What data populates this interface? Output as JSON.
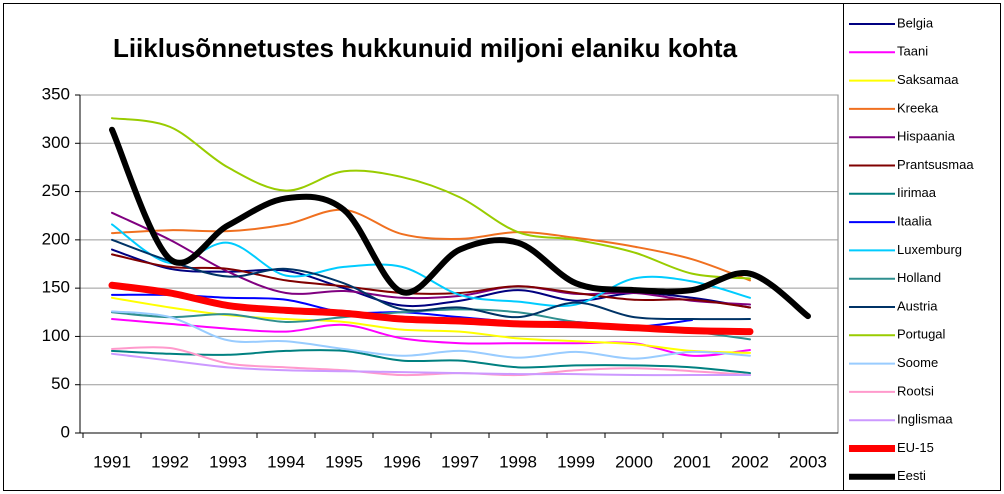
{
  "chart_data": {
    "type": "line",
    "title": "Liiklusõnnetustes hukkunuid miljoni elaniku kohta",
    "categories": [
      "1991",
      "1992",
      "1993",
      "1994",
      "1995",
      "1996",
      "1997",
      "1998",
      "1999",
      "2000",
      "2001",
      "2002",
      "2003"
    ],
    "ylim": [
      0,
      350
    ],
    "yticks": [
      0,
      50,
      100,
      150,
      200,
      250,
      300,
      350
    ],
    "grid": true,
    "series": [
      {
        "name": "Belgia",
        "color": "#000080",
        "width": 2,
        "values": [
          190,
          170,
          167,
          168,
          150,
          132,
          137,
          148,
          137,
          145,
          140,
          130,
          null
        ]
      },
      {
        "name": "Taani",
        "color": "#ff00ff",
        "width": 2,
        "values": [
          118,
          113,
          108,
          105,
          112,
          98,
          93,
          93,
          93,
          93,
          80,
          86,
          null
        ]
      },
      {
        "name": "Saksamaa",
        "color": "#ffff00",
        "width": 2,
        "values": [
          140,
          130,
          122,
          118,
          115,
          107,
          105,
          98,
          95,
          92,
          85,
          83,
          null
        ]
      },
      {
        "name": "Kreeka",
        "color": "#f07020",
        "width": 2,
        "values": [
          207,
          210,
          209,
          216,
          231,
          206,
          201,
          208,
          202,
          193,
          180,
          158,
          null
        ]
      },
      {
        "name": "Hispaania",
        "color": "#800080",
        "width": 2,
        "values": [
          228,
          200,
          167,
          145,
          147,
          140,
          142,
          152,
          144,
          145,
          137,
          133,
          null
        ]
      },
      {
        "name": "Prantsusmaa",
        "color": "#800000",
        "width": 2,
        "values": [
          185,
          172,
          170,
          158,
          152,
          145,
          145,
          152,
          145,
          138,
          138,
          130,
          null
        ]
      },
      {
        "name": "Iirimaa",
        "color": "#008080",
        "width": 2,
        "values": [
          85,
          82,
          81,
          85,
          85,
          75,
          75,
          68,
          70,
          70,
          68,
          62,
          null
        ]
      },
      {
        "name": "Itaalia",
        "color": "#0000ff",
        "width": 2,
        "values": [
          143,
          143,
          140,
          138,
          125,
          125,
          120,
          115,
          115,
          110,
          117,
          null,
          null
        ]
      },
      {
        "name": "Luxemburg",
        "color": "#00ccff",
        "width": 2,
        "values": [
          216,
          176,
          197,
          163,
          172,
          172,
          143,
          136,
          133,
          160,
          157,
          140,
          null
        ]
      },
      {
        "name": "Holland",
        "color": "#2f8f8f",
        "width": 2,
        "values": [
          125,
          120,
          123,
          115,
          120,
          125,
          128,
          125,
          115,
          110,
          105,
          97,
          null
        ]
      },
      {
        "name": "Austria",
        "color": "#003366",
        "width": 2,
        "values": [
          200,
          178,
          162,
          170,
          155,
          128,
          130,
          120,
          135,
          120,
          118,
          118,
          null
        ]
      },
      {
        "name": "Portugal",
        "color": "#99cc00",
        "width": 2,
        "values": [
          326,
          317,
          275,
          251,
          271,
          265,
          244,
          208,
          200,
          187,
          165,
          160,
          null
        ]
      },
      {
        "name": "Soome",
        "color": "#99ccff",
        "width": 2,
        "values": [
          126,
          120,
          96,
          95,
          87,
          80,
          85,
          78,
          84,
          77,
          84,
          80,
          null
        ]
      },
      {
        "name": "Rootsi",
        "color": "#ff99cc",
        "width": 2,
        "values": [
          87,
          88,
          72,
          68,
          65,
          60,
          62,
          60,
          65,
          67,
          64,
          60,
          null
        ]
      },
      {
        "name": "Inglismaa",
        "color": "#cc99ff",
        "width": 2,
        "values": [
          82,
          75,
          68,
          65,
          64,
          63,
          62,
          61,
          61,
          60,
          60,
          60,
          null
        ]
      },
      {
        "name": "EU-15",
        "color": "#ff0000",
        "width": 7,
        "values": [
          153,
          145,
          132,
          127,
          124,
          118,
          116,
          113,
          112,
          109,
          106,
          105,
          null
        ]
      },
      {
        "name": "Eesti",
        "color": "#000000",
        "width": 6,
        "values": [
          314,
          180,
          215,
          243,
          231,
          146,
          190,
          197,
          155,
          148,
          148,
          165,
          121
        ]
      }
    ]
  }
}
